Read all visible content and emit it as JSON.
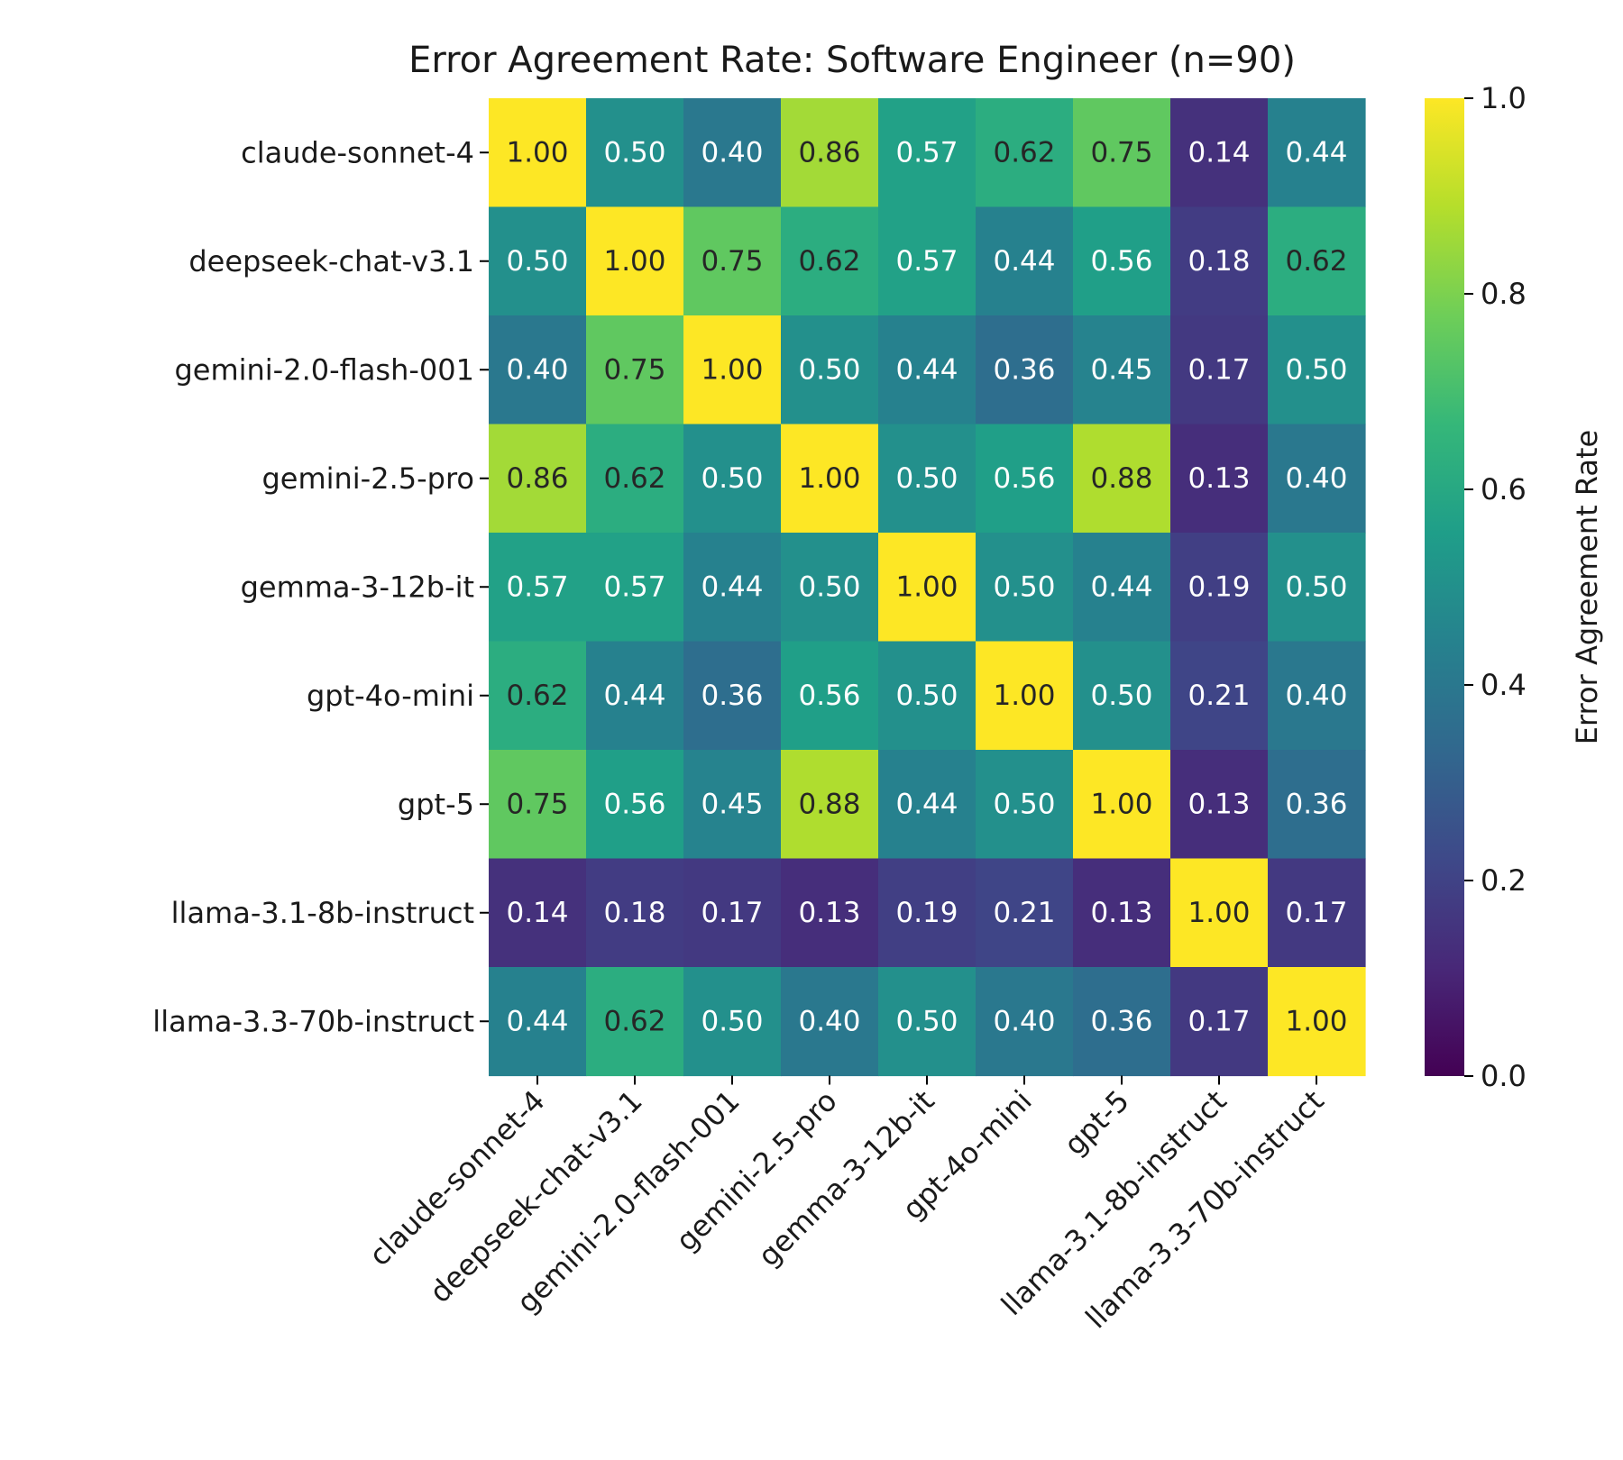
{
  "chart_data": {
    "type": "heatmap",
    "title": "Error Agreement Rate: Software Engineer (n=90)",
    "row_labels": [
      "claude-sonnet-4",
      "deepseek-chat-v3.1",
      "gemini-2.0-flash-001",
      "gemini-2.5-pro",
      "gemma-3-12b-it",
      "gpt-4o-mini",
      "gpt-5",
      "llama-3.1-8b-instruct",
      "llama-3.3-70b-instruct"
    ],
    "col_labels": [
      "claude-sonnet-4",
      "deepseek-chat-v3.1",
      "gemini-2.0-flash-001",
      "gemini-2.5-pro",
      "gemma-3-12b-it",
      "gpt-4o-mini",
      "gpt-5",
      "llama-3.1-8b-instruct",
      "llama-3.3-70b-instruct"
    ],
    "values": [
      [
        1.0,
        0.5,
        0.4,
        0.86,
        0.57,
        0.62,
        0.75,
        0.14,
        0.44
      ],
      [
        0.5,
        1.0,
        0.75,
        0.62,
        0.57,
        0.44,
        0.56,
        0.18,
        0.62
      ],
      [
        0.4,
        0.75,
        1.0,
        0.5,
        0.44,
        0.36,
        0.45,
        0.17,
        0.5
      ],
      [
        0.86,
        0.62,
        0.5,
        1.0,
        0.5,
        0.56,
        0.88,
        0.13,
        0.4
      ],
      [
        0.57,
        0.57,
        0.44,
        0.5,
        1.0,
        0.5,
        0.44,
        0.19,
        0.5
      ],
      [
        0.62,
        0.44,
        0.36,
        0.56,
        0.5,
        1.0,
        0.5,
        0.21,
        0.4
      ],
      [
        0.75,
        0.56,
        0.45,
        0.88,
        0.44,
        0.5,
        1.0,
        0.13,
        0.36
      ],
      [
        0.14,
        0.18,
        0.17,
        0.13,
        0.19,
        0.21,
        0.13,
        1.0,
        0.17
      ],
      [
        0.44,
        0.62,
        0.5,
        0.4,
        0.5,
        0.4,
        0.36,
        0.17,
        1.0
      ]
    ],
    "value_format": "0.00",
    "colormap": "viridis",
    "vmin": 0.0,
    "vmax": 1.0,
    "colorbar": {
      "label": "Error Agreement Rate",
      "ticks": [
        0.0,
        0.2,
        0.4,
        0.6,
        0.8,
        1.0
      ],
      "tick_labels": [
        "0.0",
        "0.2",
        "0.4",
        "0.6",
        "0.8",
        "1.0"
      ]
    }
  },
  "colors": {
    "text_dark": "#262626",
    "text_light": "#ffffff",
    "axis": "#000000"
  }
}
